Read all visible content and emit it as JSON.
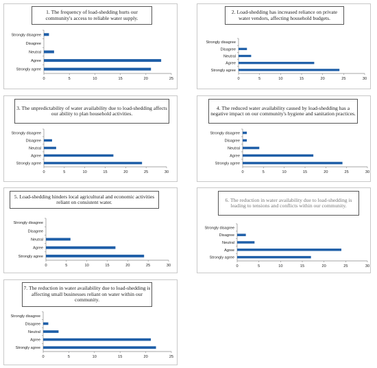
{
  "chart_data": [
    {
      "type": "bar",
      "title": "1. The frequency of load-shedding hurts our community's access to reliable water supply.",
      "categories": [
        "Strongly disagree",
        "Disagree",
        "Neutral",
        "Agree",
        "Strongly agree"
      ],
      "values": [
        1,
        0,
        2,
        23,
        21
      ],
      "xlim": [
        0,
        25
      ],
      "xticks": [
        "0",
        "5",
        "10",
        "15",
        "20",
        "25"
      ],
      "color": "#1f5fa8"
    },
    {
      "type": "bar",
      "title": "2. Load-shedding has increased reliance on private water vendors, affecting household budgets.",
      "categories": [
        "Strongly disagree",
        "Disagree",
        "Neutral",
        "Agree",
        "Strongly agree"
      ],
      "values": [
        0,
        2,
        3,
        18,
        24
      ],
      "xlim": [
        0,
        30
      ],
      "xticks": [
        "0",
        "5",
        "10",
        "15",
        "20",
        "25",
        "30"
      ],
      "color": "#1f5fa8"
    },
    {
      "type": "bar",
      "title": "3. The unpredictability of water availability due to load-shedding affects our ability to plan household activities.",
      "categories": [
        "Strongly disagree",
        "Disagree",
        "Neutral",
        "Agree",
        "Strongly agree"
      ],
      "values": [
        0,
        2,
        3,
        17,
        24
      ],
      "xlim": [
        0,
        30
      ],
      "xticks": [
        "0",
        "5",
        "10",
        "15",
        "20",
        "25",
        "30"
      ],
      "color": "#1f5fa8"
    },
    {
      "type": "bar",
      "title": "4. The reduced water availability caused by load-shedding has a negative impact on our community's hygiene and sanitation practices.",
      "categories": [
        "Strongly disagree",
        "Disagree",
        "Neutral",
        "Agree",
        "Strongly agree"
      ],
      "values": [
        1,
        1,
        4,
        17,
        24
      ],
      "xlim": [
        0,
        30
      ],
      "xticks": [
        "0",
        "5",
        "10",
        "15",
        "20",
        "25",
        "30"
      ],
      "color": "#1f5fa8"
    },
    {
      "type": "bar",
      "title": "5. Load-shedding hinders local agricultural and economic activities reliant on consistent water.",
      "categories": [
        "Strongly disagree",
        "Disagree",
        "Neutral",
        "Agree",
        "Strongly agree"
      ],
      "values": [
        0,
        0,
        6,
        17,
        24
      ],
      "xlim": [
        0,
        30
      ],
      "xticks": [
        "0",
        "5",
        "10",
        "15",
        "20",
        "25",
        "30"
      ],
      "color": "#1f5fa8"
    },
    {
      "type": "bar",
      "title": "6. The reduction in water availability due to load-shedding is leading to tensions and conflicts within our community.",
      "categories": [
        "Strongly disagree",
        "Disagree",
        "Neutral",
        "Agree",
        "Strongly agree"
      ],
      "values": [
        0,
        2,
        4,
        24,
        17
      ],
      "xlim": [
        0,
        30
      ],
      "xticks": [
        "0",
        "5",
        "10",
        "15",
        "20",
        "25",
        "30"
      ],
      "color": "#1f5fa8"
    },
    {
      "type": "bar",
      "title": "7. The reduction in water availability due to load-shedding is affecting small businesses reliant on water within our community.",
      "categories": [
        "Strongly disagree",
        "Disagree",
        "Neutral",
        "Agree",
        "Strongly agree"
      ],
      "values": [
        0,
        1,
        3,
        21,
        22
      ],
      "xlim": [
        0,
        25
      ],
      "xticks": [
        "0",
        "5",
        "10",
        "15",
        "20",
        "25"
      ],
      "color": "#1f5fa8"
    }
  ]
}
